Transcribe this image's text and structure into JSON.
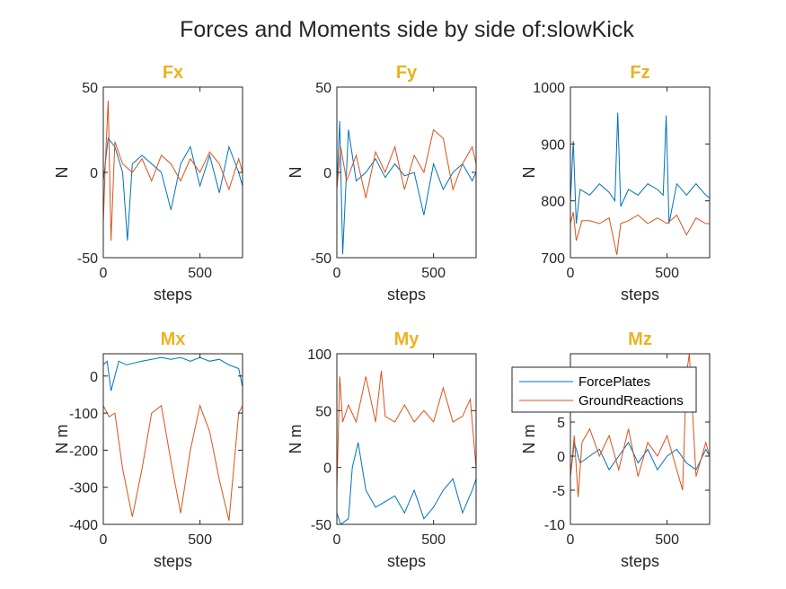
{
  "figure": {
    "title": "Forces and Moments side by side of:slowKick"
  },
  "colors": {
    "ForcePlates": "#0072BD",
    "GroundReactions": "#D95319",
    "subplot_title": "#EDB120"
  },
  "legend": {
    "entries": [
      "ForcePlates",
      "GroundReactions"
    ],
    "location": "in Mz subplot, upper-left"
  },
  "chart_data": [
    {
      "type": "line",
      "title": "Fx",
      "xlabel": "steps",
      "ylabel": "N",
      "xlim": [
        0,
        720
      ],
      "ylim": [
        -50,
        50
      ],
      "xticks": [
        0,
        500
      ],
      "yticks": [
        -50,
        0,
        50
      ],
      "series": [
        {
          "name": "ForcePlates",
          "x": [
            0,
            25,
            60,
            100,
            125,
            150,
            200,
            250,
            300,
            350,
            400,
            450,
            500,
            550,
            600,
            650,
            700,
            720
          ],
          "y": [
            -5,
            20,
            15,
            0,
            -40,
            5,
            10,
            5,
            0,
            -22,
            5,
            15,
            -8,
            10,
            -12,
            15,
            0,
            -8
          ]
        },
        {
          "name": "GroundReactions",
          "x": [
            0,
            10,
            25,
            40,
            60,
            100,
            150,
            200,
            250,
            300,
            350,
            400,
            450,
            500,
            550,
            600,
            650,
            700,
            720
          ],
          "y": [
            -30,
            5,
            42,
            -40,
            18,
            5,
            0,
            8,
            -5,
            10,
            5,
            -5,
            8,
            0,
            12,
            5,
            -10,
            8,
            0
          ]
        }
      ]
    },
    {
      "type": "line",
      "title": "Fy",
      "xlabel": "steps",
      "ylabel": "N",
      "xlim": [
        0,
        720
      ],
      "ylim": [
        -50,
        50
      ],
      "xticks": [
        0,
        500
      ],
      "yticks": [
        -50,
        0,
        50
      ],
      "series": [
        {
          "name": "ForcePlates",
          "x": [
            0,
            15,
            30,
            60,
            100,
            150,
            200,
            250,
            300,
            350,
            400,
            450,
            500,
            550,
            600,
            650,
            700,
            720
          ],
          "y": [
            -8,
            30,
            -48,
            25,
            -5,
            0,
            8,
            -3,
            5,
            -2,
            0,
            -25,
            5,
            -10,
            0,
            5,
            -5,
            0
          ]
        },
        {
          "name": "GroundReactions",
          "x": [
            0,
            20,
            50,
            100,
            150,
            200,
            250,
            300,
            350,
            400,
            450,
            500,
            550,
            600,
            650,
            700,
            720
          ],
          "y": [
            -10,
            15,
            -5,
            10,
            -15,
            12,
            0,
            15,
            -10,
            10,
            0,
            25,
            20,
            -10,
            5,
            15,
            5
          ]
        }
      ]
    },
    {
      "type": "line",
      "title": "Fz",
      "xlabel": "steps",
      "ylabel": "N",
      "xlim": [
        0,
        720
      ],
      "ylim": [
        700,
        1000
      ],
      "xticks": [
        0,
        500
      ],
      "yticks": [
        700,
        800,
        900,
        1000
      ],
      "series": [
        {
          "name": "ForcePlates",
          "x": [
            0,
            15,
            30,
            50,
            100,
            150,
            200,
            230,
            245,
            260,
            300,
            350,
            400,
            450,
            480,
            495,
            510,
            550,
            600,
            650,
            700,
            720
          ],
          "y": [
            800,
            905,
            760,
            820,
            810,
            830,
            815,
            800,
            955,
            790,
            820,
            810,
            830,
            820,
            810,
            950,
            760,
            830,
            810,
            830,
            810,
            805
          ]
        },
        {
          "name": "GroundReactions",
          "x": [
            0,
            15,
            30,
            60,
            100,
            150,
            200,
            240,
            260,
            300,
            350,
            400,
            450,
            500,
            550,
            600,
            650,
            700,
            720
          ],
          "y": [
            760,
            780,
            730,
            765,
            765,
            760,
            770,
            705,
            760,
            765,
            775,
            760,
            770,
            760,
            775,
            740,
            770,
            760,
            760
          ]
        }
      ]
    },
    {
      "type": "line",
      "title": "Mx",
      "xlabel": "steps",
      "ylabel": "N m",
      "xlim": [
        0,
        720
      ],
      "ylim": [
        -400,
        60
      ],
      "xticks": [
        0,
        500
      ],
      "yticks": [
        -400,
        -300,
        -200,
        -100,
        0
      ],
      "series": [
        {
          "name": "ForcePlates",
          "x": [
            0,
            20,
            40,
            80,
            120,
            160,
            200,
            250,
            300,
            350,
            400,
            450,
            500,
            550,
            600,
            650,
            700,
            720
          ],
          "y": [
            30,
            40,
            -40,
            40,
            30,
            35,
            40,
            45,
            50,
            45,
            50,
            40,
            50,
            40,
            45,
            30,
            20,
            -30
          ]
        },
        {
          "name": "GroundReactions",
          "x": [
            0,
            30,
            60,
            100,
            150,
            200,
            250,
            300,
            350,
            400,
            450,
            500,
            550,
            600,
            650,
            700,
            720
          ],
          "y": [
            -80,
            -110,
            -100,
            -250,
            -380,
            -250,
            -100,
            -80,
            -230,
            -370,
            -200,
            -80,
            -150,
            -280,
            -390,
            -100,
            -80
          ]
        }
      ]
    },
    {
      "type": "line",
      "title": "My",
      "xlabel": "steps",
      "ylabel": "N m",
      "xlim": [
        0,
        720
      ],
      "ylim": [
        -50,
        100
      ],
      "xticks": [
        0,
        500
      ],
      "yticks": [
        -50,
        0,
        50,
        100
      ],
      "series": [
        {
          "name": "ForcePlates",
          "x": [
            0,
            20,
            60,
            80,
            110,
            150,
            200,
            250,
            300,
            350,
            400,
            450,
            500,
            550,
            600,
            650,
            700,
            720
          ],
          "y": [
            -40,
            -50,
            -45,
            0,
            22,
            -20,
            -35,
            -30,
            -25,
            -40,
            -20,
            -45,
            -35,
            -20,
            -10,
            -40,
            -20,
            -10
          ]
        },
        {
          "name": "GroundReactions",
          "x": [
            0,
            15,
            30,
            60,
            100,
            150,
            200,
            230,
            250,
            300,
            350,
            400,
            450,
            500,
            550,
            600,
            650,
            690,
            720
          ],
          "y": [
            -20,
            80,
            40,
            55,
            40,
            80,
            40,
            85,
            45,
            40,
            55,
            40,
            50,
            40,
            70,
            40,
            45,
            60,
            0
          ]
        }
      ]
    },
    {
      "type": "line",
      "title": "Mz",
      "xlabel": "steps",
      "ylabel": "N m",
      "xlim": [
        0,
        720
      ],
      "ylim": [
        -10,
        15
      ],
      "xticks": [
        0,
        500
      ],
      "yticks": [
        -10,
        -5,
        0,
        5
      ],
      "series": [
        {
          "name": "ForcePlates",
          "x": [
            0,
            20,
            50,
            100,
            150,
            200,
            250,
            300,
            350,
            400,
            450,
            500,
            550,
            600,
            650,
            700,
            720
          ],
          "y": [
            -3,
            2,
            -1,
            0,
            1,
            -2,
            0,
            2,
            -1,
            1,
            -2,
            0,
            1,
            -1,
            -2,
            1,
            0
          ]
        },
        {
          "name": "GroundReactions",
          "x": [
            0,
            20,
            40,
            60,
            100,
            150,
            200,
            250,
            300,
            350,
            400,
            450,
            500,
            550,
            580,
            600,
            615,
            650,
            700,
            720
          ],
          "y": [
            -3,
            3,
            -6,
            2,
            4,
            0,
            3,
            -2,
            4,
            -3,
            2,
            0,
            3,
            -2,
            -5,
            12,
            15,
            -3,
            2,
            0
          ]
        }
      ]
    }
  ]
}
